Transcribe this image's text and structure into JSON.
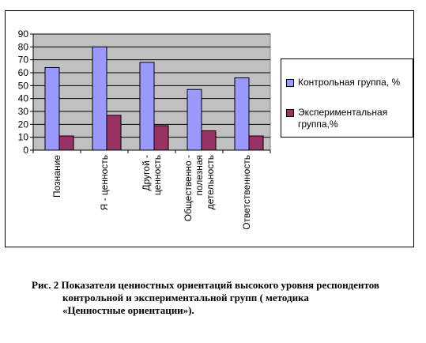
{
  "chart_data": {
    "type": "bar",
    "categories": [
      [
        "Познание"
      ],
      [
        "Я - ценность"
      ],
      [
        "Другой -",
        "ценность"
      ],
      [
        "Общественно -",
        "полезная",
        "детельность"
      ],
      [
        "Ответственность"
      ]
    ],
    "series": [
      {
        "name": "Контрольная группа, %",
        "color": "#9999ff",
        "values": [
          64,
          80,
          68,
          47,
          56
        ]
      },
      {
        "name": "Экспериментальная группа,%",
        "color": "#993366",
        "values": [
          11,
          27,
          19,
          15,
          11
        ]
      }
    ],
    "ylim": [
      0,
      90
    ],
    "yticks": [
      0,
      10,
      20,
      30,
      40,
      50,
      60,
      70,
      80,
      90
    ],
    "grid": true,
    "legend": "right",
    "plot_background": "#c0c0c0"
  },
  "legend": {
    "items": [
      {
        "label": "Контрольная группа, %"
      },
      {
        "label": "Экспериментальная группа,%"
      }
    ]
  },
  "caption": {
    "line1": "Рис. 2 Показатели ценностных ориентаций высокого уровня  респондентов",
    "line2": "контрольной и экспериментальной групп  ( методика",
    "line3": "«Ценностные  ориентации»)."
  }
}
